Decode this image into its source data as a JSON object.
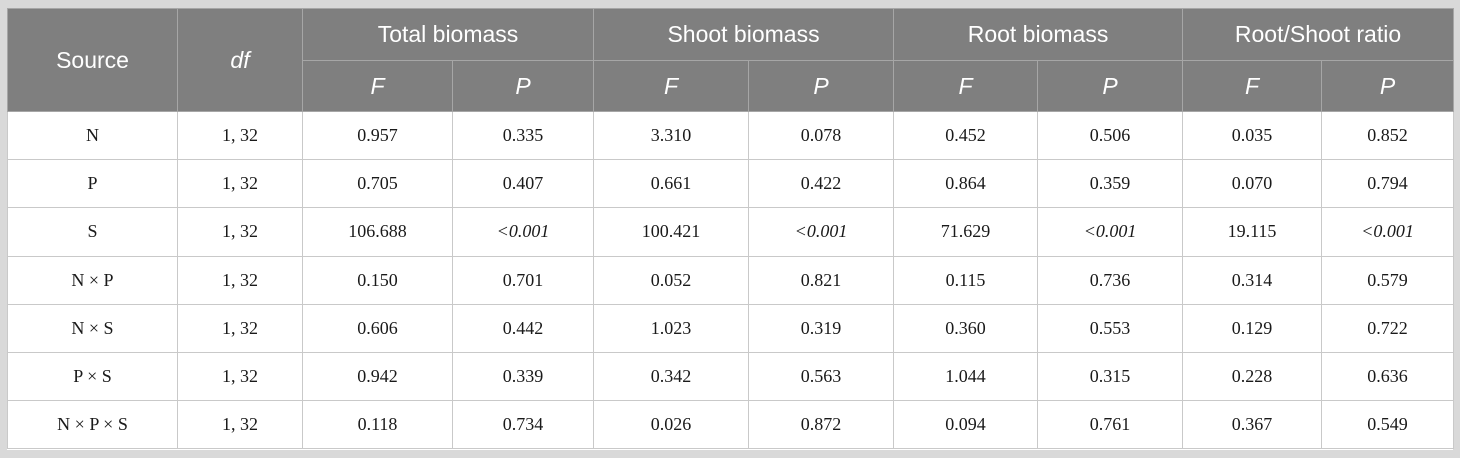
{
  "headers": {
    "source": "Source",
    "df": "df",
    "groups": [
      "Total biomass",
      "Shoot biomass",
      "Root biomass",
      "Root/Shoot ratio"
    ],
    "f": "F",
    "p": "P"
  },
  "rows": [
    {
      "source": "N",
      "df": "1, 32",
      "tb_f": "0.957",
      "tb_p": "0.335",
      "sb_f": "3.310",
      "sb_p": "0.078",
      "rb_f": "0.452",
      "rb_p": "0.506",
      "rs_f": "0.035",
      "rs_p": "0.852"
    },
    {
      "source": "P",
      "df": "1, 32",
      "tb_f": "0.705",
      "tb_p": "0.407",
      "sb_f": "0.661",
      "sb_p": "0.422",
      "rb_f": "0.864",
      "rb_p": "0.359",
      "rs_f": "0.070",
      "rs_p": "0.794"
    },
    {
      "source": "S",
      "df": "1, 32",
      "tb_f": "106.688",
      "tb_p": "<0.001",
      "sb_f": "100.421",
      "sb_p": "<0.001",
      "rb_f": "71.629",
      "rb_p": "<0.001",
      "rs_f": "19.115",
      "rs_p": "<0.001"
    },
    {
      "source": "N × P",
      "df": "1, 32",
      "tb_f": "0.150",
      "tb_p": "0.701",
      "sb_f": "0.052",
      "sb_p": "0.821",
      "rb_f": "0.115",
      "rb_p": "0.736",
      "rs_f": "0.314",
      "rs_p": "0.579"
    },
    {
      "source": "N × S",
      "df": "1, 32",
      "tb_f": "0.606",
      "tb_p": "0.442",
      "sb_f": "1.023",
      "sb_p": "0.319",
      "rb_f": "0.360",
      "rb_p": "0.553",
      "rs_f": "0.129",
      "rs_p": "0.722"
    },
    {
      "source": "P × S",
      "df": "1, 32",
      "tb_f": "0.942",
      "tb_p": "0.339",
      "sb_f": "0.342",
      "sb_p": "0.563",
      "rb_f": "1.044",
      "rb_p": "0.315",
      "rs_f": "0.228",
      "rs_p": "0.636"
    },
    {
      "source": "N × P × S",
      "df": "1, 32",
      "tb_f": "0.118",
      "tb_p": "0.734",
      "sb_f": "0.026",
      "sb_p": "0.872",
      "rb_f": "0.094",
      "rb_p": "0.761",
      "rs_f": "0.367",
      "rs_p": "0.549"
    }
  ],
  "colors": {
    "header_bg": "#7f7f7f",
    "header_text": "#ffffff",
    "page_bg": "#d9d9d9"
  }
}
